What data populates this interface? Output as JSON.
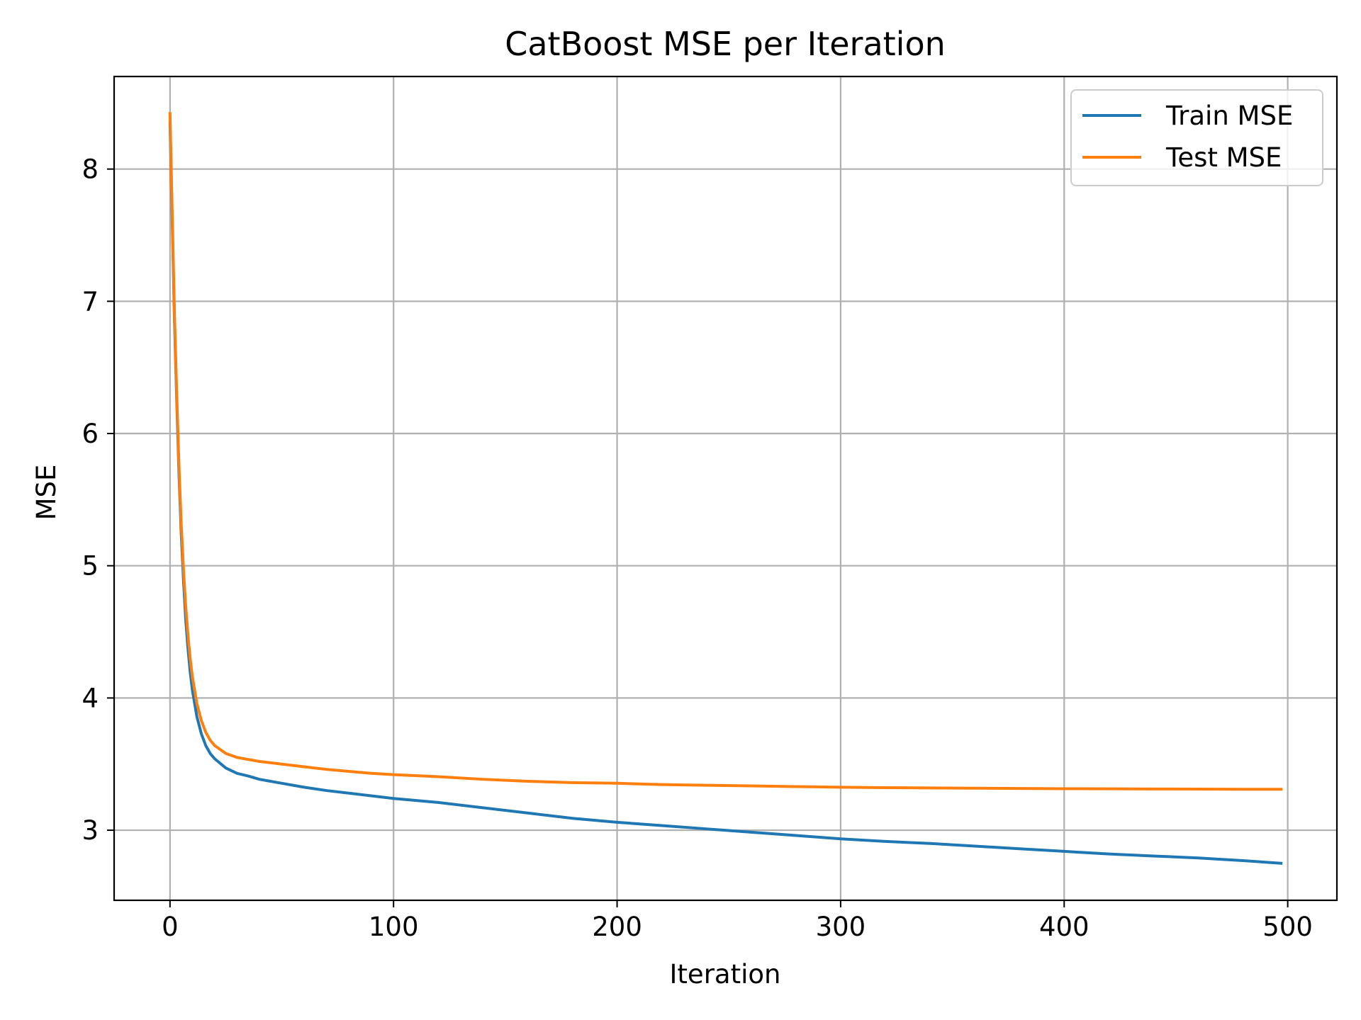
{
  "chart_data": {
    "type": "line",
    "title": "CatBoost MSE per Iteration",
    "xlabel": "Iteration",
    "ylabel": "MSE",
    "xlim": [
      -25,
      522
    ],
    "ylim": [
      2.47,
      8.7
    ],
    "xticks": [
      0,
      100,
      200,
      300,
      400,
      500
    ],
    "yticks": [
      3,
      4,
      5,
      6,
      7,
      8
    ],
    "grid": true,
    "legend_position": "top-right",
    "series": [
      {
        "name": "Train MSE",
        "color": "#1f77b4",
        "x": [
          0,
          1,
          2,
          3,
          4,
          5,
          6,
          7,
          8,
          9,
          10,
          12,
          14,
          16,
          18,
          20,
          25,
          30,
          35,
          40,
          50,
          60,
          70,
          80,
          90,
          100,
          120,
          140,
          160,
          180,
          200,
          220,
          240,
          260,
          280,
          300,
          320,
          340,
          360,
          380,
          400,
          420,
          440,
          460,
          480,
          497
        ],
        "y": [
          8.35,
          7.6,
          6.85,
          6.25,
          5.7,
          5.25,
          4.9,
          4.6,
          4.38,
          4.2,
          4.06,
          3.86,
          3.73,
          3.64,
          3.58,
          3.54,
          3.47,
          3.43,
          3.41,
          3.385,
          3.355,
          3.325,
          3.3,
          3.28,
          3.26,
          3.24,
          3.21,
          3.17,
          3.13,
          3.09,
          3.06,
          3.035,
          3.01,
          2.985,
          2.96,
          2.935,
          2.915,
          2.9,
          2.88,
          2.86,
          2.84,
          2.82,
          2.805,
          2.79,
          2.77,
          2.75
        ]
      },
      {
        "name": "Test MSE",
        "color": "#ff7f0e",
        "x": [
          0,
          1,
          2,
          3,
          4,
          5,
          6,
          7,
          8,
          9,
          10,
          12,
          14,
          16,
          18,
          20,
          25,
          30,
          35,
          40,
          50,
          60,
          70,
          80,
          90,
          100,
          120,
          140,
          160,
          180,
          200,
          220,
          240,
          260,
          280,
          300,
          320,
          340,
          360,
          380,
          400,
          420,
          440,
          460,
          480,
          497
        ],
        "y": [
          8.42,
          7.65,
          6.9,
          6.3,
          5.76,
          5.32,
          4.98,
          4.7,
          4.48,
          4.3,
          4.16,
          3.96,
          3.83,
          3.74,
          3.68,
          3.64,
          3.58,
          3.55,
          3.535,
          3.52,
          3.5,
          3.48,
          3.46,
          3.445,
          3.43,
          3.42,
          3.405,
          3.385,
          3.37,
          3.36,
          3.355,
          3.345,
          3.34,
          3.335,
          3.33,
          3.325,
          3.322,
          3.32,
          3.318,
          3.316,
          3.314,
          3.313,
          3.312,
          3.311,
          3.31,
          3.31
        ]
      }
    ]
  }
}
